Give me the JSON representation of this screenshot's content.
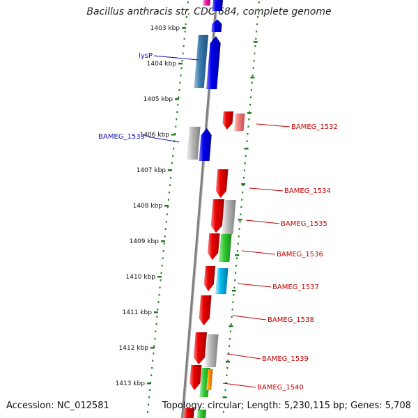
{
  "title": "Bacillus anthracis str. CDC 684, complete genome",
  "footer": {
    "accession": "Accession: NC_012581",
    "summary": "Topology: circular; Length: 5,230,115 bp; Genes: 5,708"
  },
  "ticks": [
    "1403 kbp",
    "1404 kbp",
    "1405 kbp",
    "1406 kbp",
    "1407 kbp",
    "1408 kbp",
    "1409 kbp",
    "1410 kbp",
    "1411 kbp",
    "1412 kbp",
    "1413 kbp"
  ],
  "gene_labels_left": [
    "lysP",
    "BAMEG_1533"
  ],
  "gene_labels_right": [
    "BAMEG_1532",
    "BAMEG_1534",
    "BAMEG_1535",
    "BAMEG_1536",
    "BAMEG_1537",
    "BAMEG_1538",
    "BAMEG_1539",
    "BAMEG_1540"
  ],
  "colors": {
    "forward_cds": "#0000ee",
    "reverse_cds": "#ee0000",
    "backbone": "#808080",
    "ticks": "#1e7a1e",
    "left_label": "#1010b0",
    "right_label": "#c00000"
  }
}
